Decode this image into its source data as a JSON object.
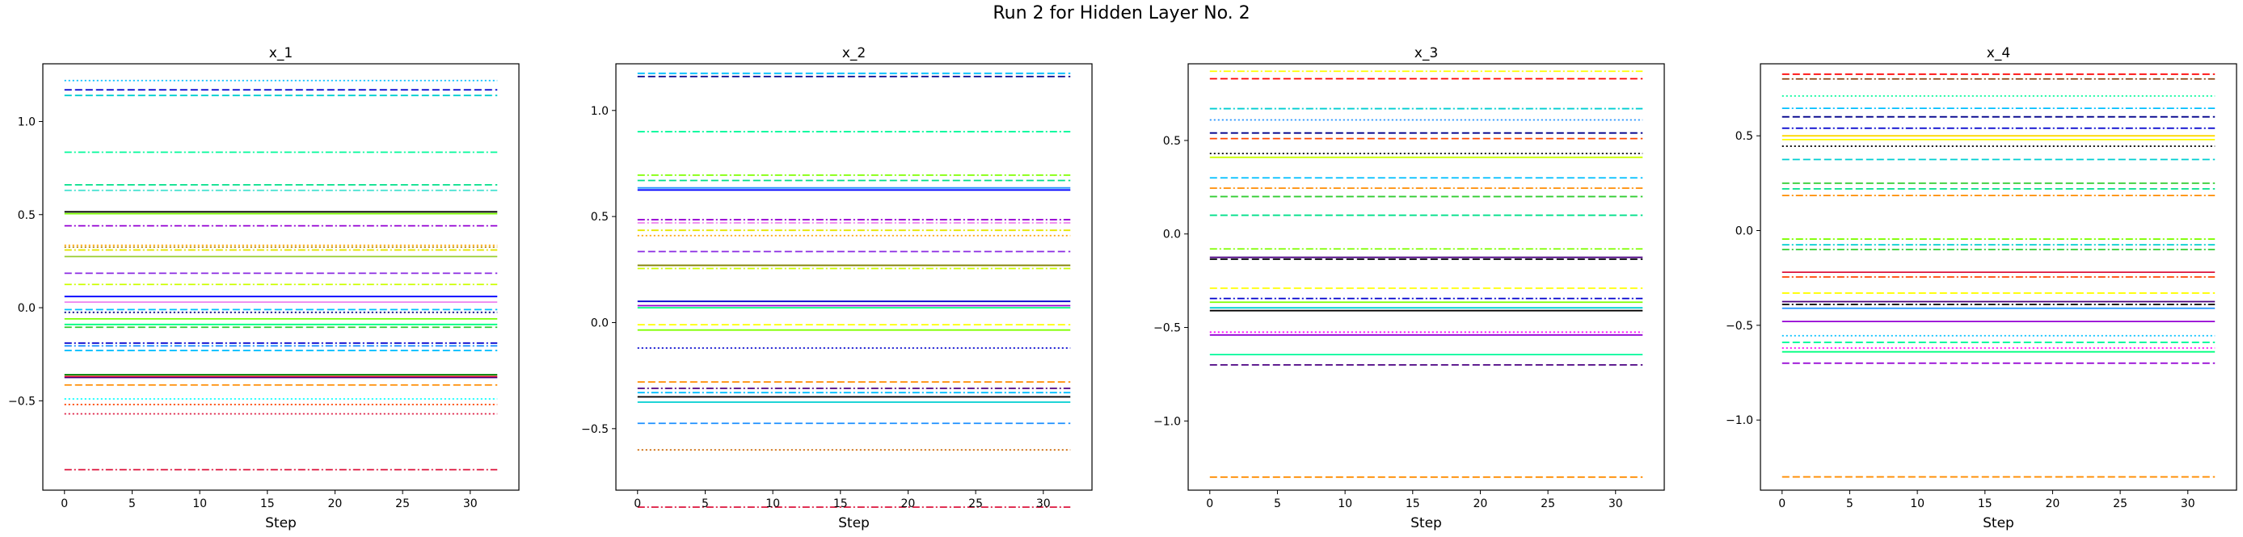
{
  "figure": {
    "title": "Run 2 for Hidden Layer No. 2"
  },
  "chart_data": [
    {
      "type": "line",
      "title": "x_1",
      "xlabel": "Step",
      "ylabel": "",
      "xlim": [
        -1.6,
        33.6
      ],
      "ylim": [
        -0.98,
        1.31
      ],
      "x_range": [
        0,
        32
      ],
      "xticks": [
        0,
        5,
        10,
        15,
        20,
        25,
        30
      ],
      "yticks": [
        -0.5,
        0.0,
        0.5,
        1.0
      ],
      "ytick_labels": [
        "−0.5",
        "0.0",
        "0.5",
        "1.0"
      ],
      "grid": false,
      "series": [
        {
          "value": 1.22,
          "color": "#00bfff",
          "style": "dotted"
        },
        {
          "value": 1.17,
          "color": "#0000cd",
          "style": "dashed"
        },
        {
          "value": 1.14,
          "color": "#00ced1",
          "style": "dashed"
        },
        {
          "value": 0.835,
          "color": "#00fa9a",
          "style": "dashdot"
        },
        {
          "value": 0.66,
          "color": "#00e08a",
          "style": "dashed"
        },
        {
          "value": 0.63,
          "color": "#40e0d0",
          "style": "dashdot"
        },
        {
          "value": 0.515,
          "color": "#000000",
          "style": "solid"
        },
        {
          "value": 0.505,
          "color": "#7cfc00",
          "style": "solid"
        },
        {
          "value": 0.44,
          "color": "#9400d3",
          "style": "dashdot"
        },
        {
          "value": 0.335,
          "color": "#ffa500",
          "style": "dotted"
        },
        {
          "value": 0.325,
          "color": "#b8860b",
          "style": "dotted"
        },
        {
          "value": 0.31,
          "color": "#e6e600",
          "style": "dashdot"
        },
        {
          "value": 0.275,
          "color": "#9acd32",
          "style": "solid"
        },
        {
          "value": 0.185,
          "color": "#8a2be2",
          "style": "dashed"
        },
        {
          "value": 0.125,
          "color": "#ccff00",
          "style": "dashdot"
        },
        {
          "value": 0.06,
          "color": "#0000ff",
          "style": "solid"
        },
        {
          "value": 0.03,
          "color": "#ee82ee",
          "style": "solid"
        },
        {
          "value": -0.01,
          "color": "#00bfff",
          "style": "dashed"
        },
        {
          "value": -0.025,
          "color": "#00008b",
          "style": "dotted"
        },
        {
          "value": -0.06,
          "color": "#7fff00",
          "style": "solid"
        },
        {
          "value": -0.09,
          "color": "#00ff7f",
          "style": "solid"
        },
        {
          "value": -0.105,
          "color": "#32cd32",
          "style": "dashed"
        },
        {
          "value": -0.19,
          "color": "#0000cd",
          "style": "dashdot"
        },
        {
          "value": -0.205,
          "color": "#1e90ff",
          "style": "dashdot"
        },
        {
          "value": -0.23,
          "color": "#00bfff",
          "style": "dashed"
        },
        {
          "value": -0.36,
          "color": "#008000",
          "style": "solid"
        },
        {
          "value": -0.37,
          "color": "#ff0000",
          "style": "solid"
        },
        {
          "value": -0.375,
          "color": "#4b0082",
          "style": "solid"
        },
        {
          "value": -0.415,
          "color": "#ff8c00",
          "style": "dashed"
        },
        {
          "value": -0.49,
          "color": "#00ffff",
          "style": "dotted"
        },
        {
          "value": -0.52,
          "color": "#ff4500",
          "style": "dotted"
        },
        {
          "value": -0.57,
          "color": "#dc143c",
          "style": "dotted"
        },
        {
          "value": -0.87,
          "color": "#dc143c",
          "style": "dashdot"
        }
      ]
    },
    {
      "type": "line",
      "title": "x_2",
      "xlabel": "Step",
      "ylabel": "",
      "xlim": [
        -1.6,
        33.6
      ],
      "ylim": [
        -0.79,
        1.22
      ],
      "x_range": [
        0,
        32
      ],
      "xticks": [
        0,
        5,
        10,
        15,
        20,
        25,
        30
      ],
      "yticks": [
        -0.5,
        0.0,
        0.5,
        1.0
      ],
      "ytick_labels": [
        "−0.5",
        "0.0",
        "0.5",
        "1.0"
      ],
      "grid": false,
      "series": [
        {
          "value": 1.175,
          "color": "#00bfff",
          "style": "dashed"
        },
        {
          "value": 1.16,
          "color": "#00008b",
          "style": "dashed"
        },
        {
          "value": 0.9,
          "color": "#00fa9a",
          "style": "dashdot"
        },
        {
          "value": 0.695,
          "color": "#7fff00",
          "style": "dashdot"
        },
        {
          "value": 0.67,
          "color": "#00e08a",
          "style": "dashed"
        },
        {
          "value": 0.635,
          "color": "#1e90ff",
          "style": "solid"
        },
        {
          "value": 0.625,
          "color": "#0000ff",
          "style": "solid"
        },
        {
          "value": 0.485,
          "color": "#9400d3",
          "style": "dashdot"
        },
        {
          "value": 0.47,
          "color": "#ee82ee",
          "style": "dashdot"
        },
        {
          "value": 0.435,
          "color": "#e6e600",
          "style": "dashdot"
        },
        {
          "value": 0.41,
          "color": "#ffa500",
          "style": "dotted"
        },
        {
          "value": 0.335,
          "color": "#8a2be2",
          "style": "dashed"
        },
        {
          "value": 0.27,
          "color": "#808000",
          "style": "solid"
        },
        {
          "value": 0.255,
          "color": "#ccff00",
          "style": "dashdot"
        },
        {
          "value": 0.1,
          "color": "#0000cd",
          "style": "solid"
        },
        {
          "value": 0.08,
          "color": "#9400d3",
          "style": "solid"
        },
        {
          "value": 0.07,
          "color": "#00ff7f",
          "style": "solid"
        },
        {
          "value": -0.01,
          "color": "#ffff00",
          "style": "dashed"
        },
        {
          "value": -0.035,
          "color": "#7fff00",
          "style": "solid"
        },
        {
          "value": -0.12,
          "color": "#0000cd",
          "style": "dotted"
        },
        {
          "value": -0.28,
          "color": "#ff8c00",
          "style": "dashed"
        },
        {
          "value": -0.31,
          "color": "#4b0082",
          "style": "dashdot"
        },
        {
          "value": -0.33,
          "color": "#00bfff",
          "style": "dashdot"
        },
        {
          "value": -0.35,
          "color": "#000000",
          "style": "solid"
        },
        {
          "value": -0.375,
          "color": "#00ced1",
          "style": "solid"
        },
        {
          "value": -0.475,
          "color": "#1e90ff",
          "style": "dashed"
        },
        {
          "value": -0.6,
          "color": "#cc6600",
          "style": "dotted"
        },
        {
          "value": -0.87,
          "color": "#dc143c",
          "style": "dashdot"
        }
      ]
    },
    {
      "type": "line",
      "title": "x_3",
      "xlabel": "Step",
      "ylabel": "",
      "xlim": [
        -1.6,
        33.6
      ],
      "ylim": [
        -1.37,
        0.91
      ],
      "x_range": [
        0,
        32
      ],
      "xticks": [
        0,
        5,
        10,
        15,
        20,
        25,
        30
      ],
      "yticks": [
        -1.0,
        -0.5,
        0.0,
        0.5
      ],
      "ytick_labels": [
        "−1.0",
        "−0.5",
        "0.0",
        "0.5"
      ],
      "grid": false,
      "series": [
        {
          "value": 0.87,
          "color": "#ffff00",
          "style": "dashdot"
        },
        {
          "value": 0.83,
          "color": "#ff0000",
          "style": "dashed"
        },
        {
          "value": 0.67,
          "color": "#00ced1",
          "style": "dashdot"
        },
        {
          "value": 0.61,
          "color": "#1e90ff",
          "style": "dotted"
        },
        {
          "value": 0.54,
          "color": "#00008b",
          "style": "dashed"
        },
        {
          "value": 0.51,
          "color": "#ff4500",
          "style": "dashed"
        },
        {
          "value": 0.43,
          "color": "#000000",
          "style": "dotted"
        },
        {
          "value": 0.41,
          "color": "#ccff00",
          "style": "solid"
        },
        {
          "value": 0.3,
          "color": "#00bfff",
          "style": "dashed"
        },
        {
          "value": 0.245,
          "color": "#ff8c00",
          "style": "dashdot"
        },
        {
          "value": 0.2,
          "color": "#32cd32",
          "style": "dashed"
        },
        {
          "value": 0.1,
          "color": "#00e08a",
          "style": "dashed"
        },
        {
          "value": -0.08,
          "color": "#7fff00",
          "style": "dashdot"
        },
        {
          "value": -0.125,
          "color": "#4b0082",
          "style": "solid"
        },
        {
          "value": -0.135,
          "color": "#000000",
          "style": "dashed"
        },
        {
          "value": -0.29,
          "color": "#ffff00",
          "style": "dashed"
        },
        {
          "value": -0.345,
          "color": "#0000cd",
          "style": "dashdot"
        },
        {
          "value": -0.365,
          "color": "#7fff00",
          "style": "solid"
        },
        {
          "value": -0.395,
          "color": "#00ced1",
          "style": "solid"
        },
        {
          "value": -0.41,
          "color": "#000000",
          "style": "solid"
        },
        {
          "value": -0.525,
          "color": "#ff00ff",
          "style": "dotted"
        },
        {
          "value": -0.54,
          "color": "#9400d3",
          "style": "solid"
        },
        {
          "value": -0.645,
          "color": "#00fa9a",
          "style": "solid"
        },
        {
          "value": -0.7,
          "color": "#4b0082",
          "style": "dashed"
        },
        {
          "value": -1.3,
          "color": "#ff8c00",
          "style": "dashed"
        }
      ]
    },
    {
      "type": "line",
      "title": "x_4",
      "xlabel": "Step",
      "ylabel": "",
      "xlim": [
        -1.6,
        33.6
      ],
      "ylim": [
        -1.37,
        0.88
      ],
      "x_range": [
        0,
        32
      ],
      "xticks": [
        0,
        5,
        10,
        15,
        20,
        25,
        30
      ],
      "yticks": [
        -1.0,
        -0.5,
        0.0,
        0.5
      ],
      "ytick_labels": [
        "−1.0",
        "−0.5",
        "0.0",
        "0.5"
      ],
      "grid": false,
      "series": [
        {
          "value": 0.825,
          "color": "#ff0000",
          "style": "dashed"
        },
        {
          "value": 0.8,
          "color": "#8b4513",
          "style": "dashdot"
        },
        {
          "value": 0.71,
          "color": "#00fa9a",
          "style": "dotted"
        },
        {
          "value": 0.645,
          "color": "#00bfff",
          "style": "dashdot"
        },
        {
          "value": 0.6,
          "color": "#00008b",
          "style": "dashed"
        },
        {
          "value": 0.54,
          "color": "#0000cd",
          "style": "dashdot"
        },
        {
          "value": 0.5,
          "color": "#ffd700",
          "style": "solid"
        },
        {
          "value": 0.48,
          "color": "#ffff00",
          "style": "solid"
        },
        {
          "value": 0.445,
          "color": "#000000",
          "style": "dotted"
        },
        {
          "value": 0.375,
          "color": "#00ced1",
          "style": "dashed"
        },
        {
          "value": 0.25,
          "color": "#32cd32",
          "style": "dashed"
        },
        {
          "value": 0.22,
          "color": "#00e08a",
          "style": "dashed"
        },
        {
          "value": 0.185,
          "color": "#ff8c00",
          "style": "dashdot"
        },
        {
          "value": -0.045,
          "color": "#7fff00",
          "style": "dashdot"
        },
        {
          "value": -0.075,
          "color": "#00ced1",
          "style": "dashdot"
        },
        {
          "value": -0.1,
          "color": "#32cd32",
          "style": "dashdot"
        },
        {
          "value": -0.22,
          "color": "#dc143c",
          "style": "solid"
        },
        {
          "value": -0.245,
          "color": "#ff4500",
          "style": "dashdot"
        },
        {
          "value": -0.33,
          "color": "#ffff00",
          "style": "dashed"
        },
        {
          "value": -0.375,
          "color": "#4b0082",
          "style": "solid"
        },
        {
          "value": -0.39,
          "color": "#000000",
          "style": "dashdot"
        },
        {
          "value": -0.41,
          "color": "#1e90ff",
          "style": "solid"
        },
        {
          "value": -0.48,
          "color": "#9400d3",
          "style": "solid"
        },
        {
          "value": -0.555,
          "color": "#00bfff",
          "style": "dotted"
        },
        {
          "value": -0.59,
          "color": "#00fa9a",
          "style": "dashed"
        },
        {
          "value": -0.62,
          "color": "#ff00ff",
          "style": "dotted"
        },
        {
          "value": -0.64,
          "color": "#00ff7f",
          "style": "solid"
        },
        {
          "value": -0.7,
          "color": "#9400d3",
          "style": "dashed"
        },
        {
          "value": -1.3,
          "color": "#ff8c00",
          "style": "dashed"
        }
      ]
    }
  ]
}
